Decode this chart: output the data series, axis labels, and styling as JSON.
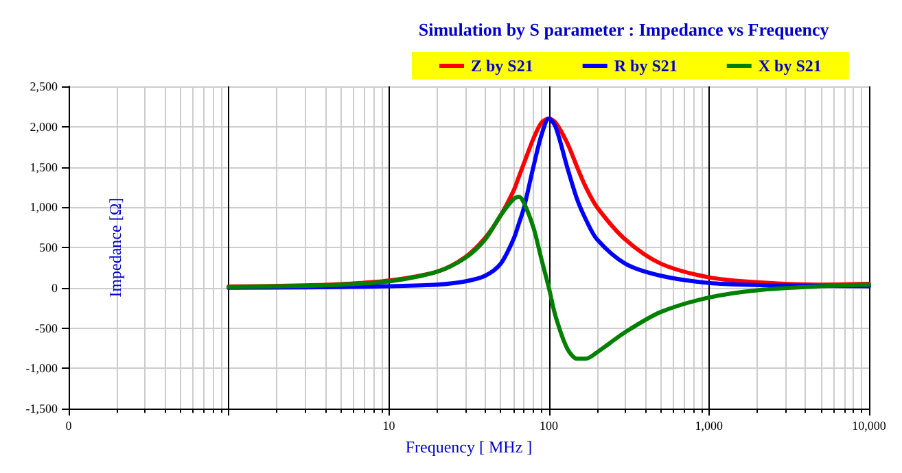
{
  "chart_data": {
    "type": "line",
    "title": "Simulation by S parameter : Impedance vs Frequency",
    "xlabel": "Frequency [ MHz ]",
    "ylabel": "Impedance [Ω]",
    "log": "x",
    "grid": true,
    "legend": "top",
    "marker": "none",
    "line_style": "solid",
    "xlim": [
      0.1,
      10000
    ],
    "xticks": [
      {
        "value": 0.1,
        "label": "0"
      },
      {
        "value": 1,
        "label": null
      },
      10,
      100,
      {
        "value": 1000,
        "label": "1,000"
      },
      {
        "value": 10000,
        "label": "10,000"
      }
    ],
    "ylim": [
      -1500,
      2500
    ],
    "yticks": [
      {
        "value": -1500,
        "label": "-1,500"
      },
      {
        "value": -1000,
        "label": "-1,000"
      },
      -500,
      0,
      500,
      {
        "value": 1000,
        "label": "1,000"
      },
      {
        "value": 1500,
        "label": "1,500"
      },
      {
        "value": 2000,
        "label": "2,000"
      },
      {
        "value": 2500,
        "label": "2,500"
      }
    ],
    "x": [
      1,
      3,
      5,
      10,
      20,
      30,
      40,
      50,
      60,
      65,
      70,
      80,
      90,
      100,
      110,
      130,
      150,
      170,
      200,
      300,
      500,
      1000,
      2000,
      5000,
      10000
    ],
    "series": [
      {
        "name": "Z by S21",
        "color": "#ff0000",
        "values": [
          15,
          30,
          45,
          90,
          200,
          380,
          620,
          900,
          1200,
          1380,
          1550,
          1850,
          2050,
          2100,
          2050,
          1800,
          1500,
          1250,
          1000,
          600,
          300,
          130,
          70,
          40,
          50
        ]
      },
      {
        "name": "R by S21",
        "color": "#0000ff",
        "values": [
          0,
          5,
          10,
          20,
          40,
          80,
          150,
          300,
          600,
          800,
          1000,
          1500,
          1900,
          2100,
          2000,
          1500,
          1100,
          850,
          600,
          300,
          150,
          60,
          35,
          25,
          20
        ]
      },
      {
        "name": "X by S21",
        "color": "#008000",
        "values": [
          10,
          25,
          40,
          80,
          200,
          370,
          600,
          900,
          1100,
          1130,
          1050,
          750,
          350,
          0,
          -350,
          -750,
          -880,
          -880,
          -800,
          -550,
          -300,
          -120,
          -30,
          20,
          40
        ]
      }
    ]
  }
}
